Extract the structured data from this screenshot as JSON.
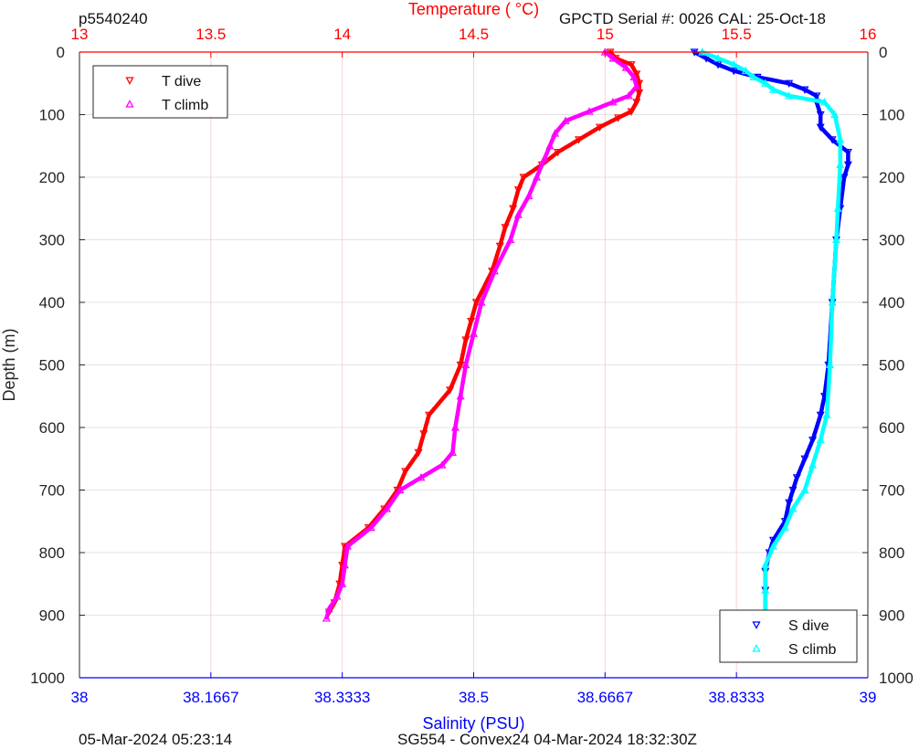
{
  "header": {
    "profile_id": "p5540240",
    "serial_info": "GPCTD Serial #: 0026 CAL: 25-Oct-18"
  },
  "footer": {
    "left": "05-Mar-2024 05:23:14",
    "center": "SG554 - Convex24 04-Mar-2024 18:32:30Z"
  },
  "colors": {
    "t_dive": "#ff0000",
    "t_climb": "#ff00ff",
    "s_dive": "#0000ff",
    "s_climb": "#00ffff",
    "temperature_axis": "#ff0000",
    "salinity_axis": "#0000ff",
    "depth_axis": "#262626"
  },
  "chart_data": {
    "type": "scatter",
    "ylabel": "Depth (m)",
    "ylim": [
      1000,
      0
    ],
    "yticks": [
      "0",
      "100",
      "200",
      "300",
      "400",
      "500",
      "600",
      "700",
      "800",
      "900",
      "1000"
    ],
    "temperature_axis": {
      "label": "Temperature (    °C)",
      "lim": [
        13,
        16
      ],
      "ticks": [
        "13",
        "13.5",
        "14",
        "14.5",
        "15",
        "15.5",
        "16"
      ]
    },
    "salinity_axis": {
      "label": "Salinity (PSU)",
      "lim": [
        38,
        39
      ],
      "ticks": [
        "38",
        "38.1667",
        "38.3333",
        "38.5",
        "38.6667",
        "38.8333",
        "39"
      ]
    },
    "grid": true,
    "legends": [
      {
        "placement": "top-left",
        "entries": [
          "T dive",
          "T climb"
        ]
      },
      {
        "placement": "bottom-right",
        "entries": [
          "S dive",
          "S climb"
        ]
      }
    ],
    "series": [
      {
        "name": "T dive",
        "axis": "temperature",
        "marker": "triangle-down",
        "depth": [
          0,
          10,
          20,
          35,
          50,
          65,
          80,
          95,
          105,
          120,
          140,
          160,
          180,
          200,
          220,
          250,
          280,
          310,
          350,
          400,
          430,
          460,
          500,
          540,
          580,
          610,
          640,
          670,
          700,
          730,
          760,
          790,
          820,
          850,
          880,
          895
        ],
        "values": [
          15.02,
          15.04,
          15.1,
          15.12,
          15.13,
          15.13,
          15.12,
          15.1,
          15.05,
          14.98,
          14.9,
          14.82,
          14.76,
          14.69,
          14.67,
          14.65,
          14.62,
          14.6,
          14.57,
          14.51,
          14.49,
          14.47,
          14.45,
          14.41,
          14.33,
          14.31,
          14.29,
          14.24,
          14.21,
          14.16,
          14.1,
          14.01,
          14.0,
          13.99,
          13.97,
          13.95
        ]
      },
      {
        "name": "T climb",
        "axis": "temperature",
        "marker": "triangle-up",
        "depth": [
          0,
          10,
          25,
          40,
          55,
          70,
          80,
          95,
          110,
          130,
          150,
          170,
          200,
          230,
          260,
          300,
          350,
          400,
          450,
          500,
          550,
          600,
          640,
          660,
          680,
          700,
          730,
          760,
          790,
          820,
          850,
          870,
          890,
          905
        ],
        "values": [
          15.0,
          15.03,
          15.08,
          15.11,
          15.12,
          15.09,
          15.03,
          14.94,
          14.85,
          14.81,
          14.79,
          14.77,
          14.74,
          14.71,
          14.67,
          14.64,
          14.58,
          14.53,
          14.5,
          14.47,
          14.45,
          14.43,
          14.42,
          14.38,
          14.3,
          14.22,
          14.17,
          14.11,
          14.02,
          14.01,
          14.0,
          13.98,
          13.95,
          13.94
        ]
      },
      {
        "name": "S dive",
        "axis": "salinity",
        "marker": "triangle-down",
        "depth": [
          0,
          10,
          20,
          30,
          40,
          50,
          60,
          70,
          80,
          100,
          120,
          140,
          160,
          180,
          200,
          250,
          300,
          400,
          500,
          550,
          580,
          620,
          650,
          680,
          700,
          720,
          750,
          780,
          800,
          830,
          860,
          900
        ],
        "values": [
          38.78,
          38.795,
          38.81,
          38.83,
          38.86,
          38.9,
          38.92,
          38.935,
          38.935,
          38.94,
          38.94,
          38.955,
          38.975,
          38.975,
          38.97,
          38.965,
          38.96,
          38.955,
          38.95,
          38.945,
          38.94,
          38.93,
          38.92,
          38.91,
          38.905,
          38.9,
          38.895,
          38.88,
          38.875,
          38.87,
          38.87,
          38.87
        ]
      },
      {
        "name": "S climb",
        "axis": "salinity",
        "marker": "triangle-up",
        "depth": [
          0,
          10,
          20,
          30,
          40,
          50,
          60,
          70,
          80,
          100,
          140,
          180,
          250,
          300,
          400,
          500,
          580,
          620,
          660,
          700,
          730,
          760,
          790,
          820,
          860,
          900
        ],
        "values": [
          38.79,
          38.81,
          38.83,
          38.845,
          38.855,
          38.87,
          38.88,
          38.9,
          38.945,
          38.958,
          38.965,
          38.965,
          38.962,
          38.96,
          38.955,
          38.952,
          38.948,
          38.94,
          38.93,
          38.92,
          38.905,
          38.895,
          38.88,
          38.87,
          38.87,
          38.87
        ]
      }
    ]
  }
}
